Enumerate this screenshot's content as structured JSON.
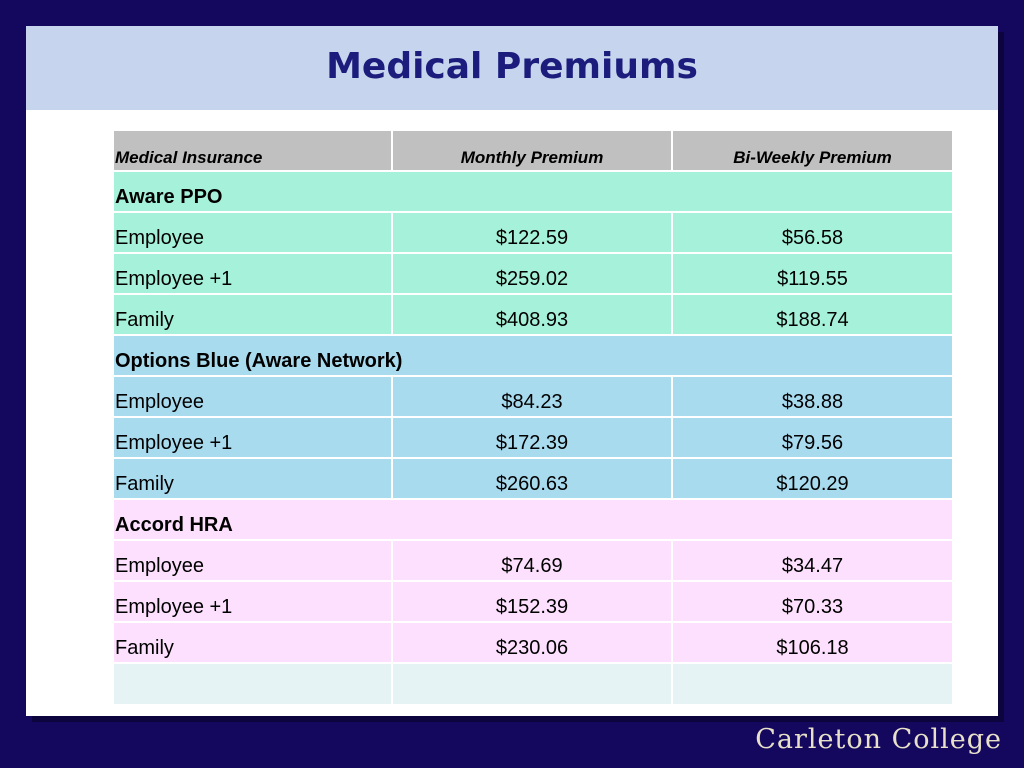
{
  "slide": {
    "title": "Medical Premiums",
    "logo_text": "Carleton College"
  },
  "table": {
    "headers": [
      "Medical Insurance",
      "Monthly Premium",
      "Bi-Weekly Premium"
    ],
    "groups": [
      {
        "plan": "Aware PPO",
        "color": "#a6f1d9",
        "rows": [
          {
            "tier": "Employee",
            "monthly": "$122.59",
            "biweekly": "$56.58"
          },
          {
            "tier": "Employee +1",
            "monthly": "$259.02",
            "biweekly": "$119.55"
          },
          {
            "tier": "Family",
            "monthly": "$408.93",
            "biweekly": "$188.74"
          }
        ]
      },
      {
        "plan": "Options Blue (Aware Network)",
        "color": "#a9dbef",
        "rows": [
          {
            "tier": "Employee",
            "monthly": "$84.23",
            "biweekly": "$38.88"
          },
          {
            "tier": "Employee +1",
            "monthly": "$172.39",
            "biweekly": "$79.56"
          },
          {
            "tier": "Family",
            "monthly": "$260.63",
            "biweekly": "$120.29"
          }
        ]
      },
      {
        "plan": "Accord HRA",
        "color": "#fde0fd",
        "rows": [
          {
            "tier": "Employee",
            "monthly": "$74.69",
            "biweekly": "$34.47"
          },
          {
            "tier": "Employee +1",
            "monthly": "$152.39",
            "biweekly": "$70.33"
          },
          {
            "tier": "Family",
            "monthly": "$230.06",
            "biweekly": "$106.18"
          }
        ]
      }
    ]
  },
  "colors": {
    "background": "#13085e",
    "title_band": "#c7d4ee",
    "title_text": "#1b1c7c",
    "header_row": "#c0c0c0"
  }
}
